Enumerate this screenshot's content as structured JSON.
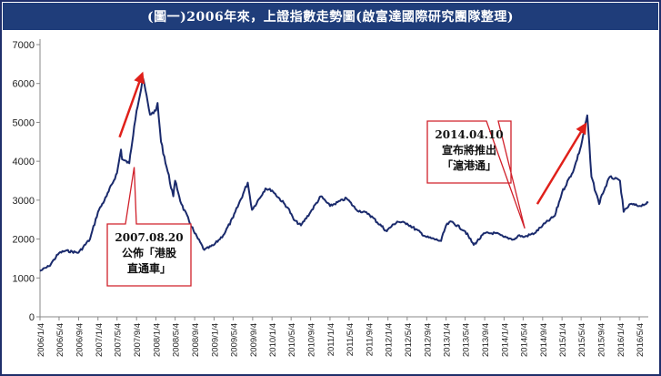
{
  "title": "(圖一)2006年來，上證指數走勢圖(啟富達國際研究團隊整理)",
  "colors": {
    "title_bg": "#1f3d7a",
    "series_line": "#1a2a6c",
    "arrow": "#e0201a",
    "callout_border": "#d0202a"
  },
  "annotations": {
    "callout_2007": {
      "lines": [
        "2007.08.20",
        "公佈「港股",
        "直通車」"
      ]
    },
    "callout_2014": {
      "lines": [
        "2014.04.10",
        "宣布將推出",
        "「滬港通」"
      ]
    }
  },
  "chart_data": {
    "type": "line",
    "title": "(圖一)2006年來，上證指數走勢圖(啟富達國際研究團隊整理)",
    "xlabel": "",
    "ylabel": "",
    "ylim": [
      0,
      7000
    ],
    "yticks": [
      0,
      1000,
      2000,
      3000,
      4000,
      5000,
      6000,
      7000
    ],
    "xtick_labels": [
      "2006/1/4",
      "2006/5/4",
      "2006/9/4",
      "2007/1/4",
      "2007/5/4",
      "2007/9/4",
      "2008/1/4",
      "2008/5/4",
      "2008/9/4",
      "2009/1/4",
      "2009/5/4",
      "2009/9/4",
      "2010/1/4",
      "2010/5/4",
      "2010/9/4",
      "2011/1/4",
      "2011/5/4",
      "2011/9/4",
      "2012/1/4",
      "2012/5/4",
      "2012/9/4",
      "2013/1/4",
      "2013/5/4",
      "2013/9/4",
      "2014/1/4",
      "2014/5/4",
      "2014/9/4",
      "2015/1/4",
      "2015/5/4",
      "2015/9/4",
      "2016/1/4",
      "2016/5/4"
    ],
    "grid": false,
    "legend": "none",
    "series": [
      {
        "x": [
          "2006/1/4",
          "2006/3/1",
          "2006/5/4",
          "2006/6/15",
          "2006/9/4",
          "2006/11/15",
          "2007/1/4",
          "2007/2/27",
          "2007/5/4",
          "2007/5/29",
          "2007/6/5",
          "2007/7/20",
          "2007/8/20",
          "2007/9/4",
          "2007/10/16",
          "2007/11/28",
          "2008/1/4",
          "2008/1/14",
          "2008/2/5",
          "2008/4/22",
          "2008/5/4",
          "2008/6/12",
          "2008/9/4",
          "2008/11/4",
          "2009/1/4",
          "2009/3/3",
          "2009/5/4",
          "2009/8/4",
          "2009/8/31",
          "2009/11/24",
          "2010/1/4",
          "2010/4/15",
          "2010/5/20",
          "2010/7/5",
          "2010/9/4",
          "2010/11/8",
          "2011/1/4",
          "2011/4/18",
          "2011/6/20",
          "2011/9/4",
          "2011/12/28",
          "2012/1/4",
          "2012/3/2",
          "2012/5/4",
          "2012/9/4",
          "2012/12/3",
          "2013/1/4",
          "2013/2/6",
          "2013/5/4",
          "2013/6/27",
          "2013/9/4",
          "2013/11/15",
          "2014/1/4",
          "2014/3/10",
          "2014/4/10",
          "2014/5/4",
          "2014/7/15",
          "2014/9/4",
          "2014/11/20",
          "2015/1/4",
          "2015/3/20",
          "2015/5/4",
          "2015/6/12",
          "2015/7/8",
          "2015/8/26",
          "2015/9/4",
          "2015/11/1",
          "2016/1/4",
          "2016/1/27",
          "2016/3/10",
          "2016/5/4",
          "2016/6/30"
        ],
        "values": [
          1180,
          1300,
          1640,
          1700,
          1650,
          2000,
          2700,
          3100,
          3700,
          4300,
          4050,
          3950,
          4900,
          5300,
          6120,
          5200,
          5300,
          5500,
          4500,
          3100,
          3500,
          2900,
          2150,
          1720,
          1850,
          2100,
          2550,
          3450,
          2750,
          3300,
          3250,
          2800,
          2500,
          2350,
          2700,
          3100,
          2850,
          3050,
          2750,
          2650,
          2200,
          2250,
          2450,
          2400,
          2050,
          1950,
          2350,
          2450,
          2200,
          1850,
          2150,
          2150,
          2050,
          1990,
          2100,
          2050,
          2150,
          2350,
          2600,
          3200,
          3800,
          4400,
          5180,
          3600,
          2900,
          3050,
          3600,
          3500,
          2700,
          2900,
          2850,
          2930
        ]
      }
    ]
  }
}
